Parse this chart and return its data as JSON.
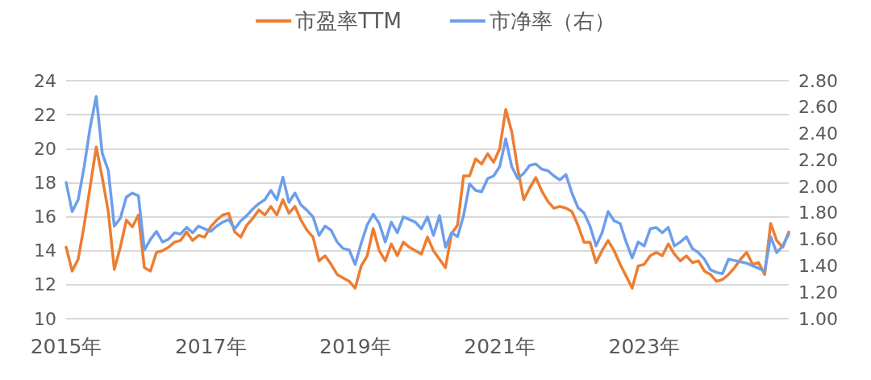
{
  "chart_data": {
    "type": "line",
    "categories": [
      "2015年",
      null,
      null,
      null,
      null,
      null,
      null,
      null,
      null,
      null,
      null,
      null,
      null,
      null,
      null,
      null,
      null,
      null,
      null,
      null,
      null,
      null,
      null,
      null,
      "2017年",
      null,
      null,
      null,
      null,
      null,
      null,
      null,
      null,
      null,
      null,
      null,
      null,
      null,
      null,
      null,
      null,
      null,
      null,
      null,
      null,
      null,
      null,
      null,
      "2019年",
      null,
      null,
      null,
      null,
      null,
      null,
      null,
      null,
      null,
      null,
      null,
      null,
      null,
      null,
      null,
      null,
      null,
      null,
      null,
      null,
      null,
      null,
      null,
      "2021年",
      null,
      null,
      null,
      null,
      null,
      null,
      null,
      null,
      null,
      null,
      null,
      null,
      null,
      null,
      null,
      null,
      null,
      null,
      null,
      null,
      null,
      null,
      null,
      "2023年",
      null,
      null,
      null,
      null,
      null,
      null,
      null,
      null,
      null,
      null,
      null,
      null,
      null,
      null,
      null,
      null,
      null,
      null,
      null,
      null,
      null,
      null,
      null,
      null
    ],
    "series": [
      {
        "name": "市盈率TTM",
        "color": "#ed7d31",
        "values": [
          14.2,
          12.8,
          13.5,
          15.5,
          17.8,
          20.1,
          18.3,
          16.3,
          12.9,
          14.2,
          15.8,
          15.4,
          16.1,
          13.0,
          12.8,
          13.9,
          14.0,
          14.2,
          14.5,
          14.6,
          15.1,
          14.6,
          14.9,
          14.8,
          15.4,
          15.8,
          16.1,
          16.2,
          15.1,
          14.8,
          15.5,
          15.9,
          16.4,
          16.1,
          16.6,
          16.1,
          17.0,
          16.2,
          16.6,
          15.8,
          15.2,
          14.8,
          13.4,
          13.7,
          13.2,
          12.6,
          12.4,
          12.2,
          11.8,
          13.1,
          13.7,
          15.3,
          14.0,
          13.4,
          14.4,
          13.7,
          14.5,
          14.2,
          14.0,
          13.8,
          14.8,
          14.0,
          13.5,
          13.0,
          15.0,
          15.5,
          18.4,
          18.4,
          19.4,
          19.1,
          19.7,
          19.2,
          20.0,
          22.3,
          21.0,
          18.8,
          17.0,
          17.7,
          18.3,
          17.5,
          16.9,
          16.5,
          16.6,
          16.5,
          16.3,
          15.5,
          14.5,
          14.5,
          13.3,
          14.0,
          14.6,
          14.0,
          13.2,
          12.5,
          11.8,
          13.1,
          13.2,
          13.7,
          13.9,
          13.7,
          14.4,
          13.8,
          13.4,
          13.7,
          13.3,
          13.4,
          12.8,
          12.6,
          12.2,
          12.3,
          12.6,
          13.0,
          13.5,
          13.9,
          13.2,
          13.3,
          12.6,
          15.6,
          14.6,
          14.2,
          15.1
        ]
      },
      {
        "name": "市净率（右）",
        "color": "#6d9eeb",
        "axis": "y2",
        "values": [
          2.03,
          1.81,
          1.9,
          2.15,
          2.45,
          2.68,
          2.25,
          2.12,
          1.7,
          1.76,
          1.92,
          1.95,
          1.93,
          1.52,
          1.6,
          1.66,
          1.58,
          1.6,
          1.65,
          1.64,
          1.69,
          1.65,
          1.7,
          1.68,
          1.66,
          1.7,
          1.73,
          1.75,
          1.68,
          1.74,
          1.78,
          1.83,
          1.87,
          1.9,
          1.97,
          1.9,
          2.07,
          1.88,
          1.95,
          1.86,
          1.82,
          1.77,
          1.63,
          1.7,
          1.67,
          1.58,
          1.53,
          1.52,
          1.41,
          1.57,
          1.71,
          1.79,
          1.72,
          1.58,
          1.73,
          1.65,
          1.77,
          1.75,
          1.73,
          1.68,
          1.77,
          1.63,
          1.78,
          1.54,
          1.65,
          1.62,
          1.78,
          2.02,
          1.97,
          1.96,
          2.06,
          2.08,
          2.15,
          2.36,
          2.15,
          2.06,
          2.1,
          2.16,
          2.17,
          2.13,
          2.12,
          2.08,
          2.05,
          2.09,
          1.95,
          1.84,
          1.8,
          1.7,
          1.55,
          1.65,
          1.81,
          1.74,
          1.72,
          1.58,
          1.46,
          1.58,
          1.55,
          1.68,
          1.69,
          1.65,
          1.69,
          1.55,
          1.58,
          1.62,
          1.53,
          1.5,
          1.45,
          1.37,
          1.35,
          1.34,
          1.45,
          1.44,
          1.43,
          1.42,
          1.4,
          1.38,
          1.36,
          1.62,
          1.5,
          1.55,
          1.64
        ]
      }
    ],
    "ylim": [
      10,
      24
    ],
    "yticks": [
      10,
      12,
      14,
      16,
      18,
      20,
      22,
      24
    ],
    "y2lim": [
      1,
      2.8
    ],
    "y2ticks": [
      {
        "value": 1,
        "label": "1.00"
      },
      {
        "value": 1.2,
        "label": "1.20"
      },
      {
        "value": 1.4,
        "label": "1.40"
      },
      {
        "value": 1.6,
        "label": "1.60"
      },
      {
        "value": 1.8,
        "label": "1.80"
      },
      {
        "value": 2,
        "label": "2.00"
      },
      {
        "value": 2.2,
        "label": "2.20"
      },
      {
        "value": 2.4,
        "label": "2.40"
      },
      {
        "value": 2.6,
        "label": "2.60"
      },
      {
        "value": 2.8,
        "label": "2.80"
      }
    ],
    "grid": "y",
    "legend": "top",
    "marker": "none",
    "line_style": "solid"
  }
}
